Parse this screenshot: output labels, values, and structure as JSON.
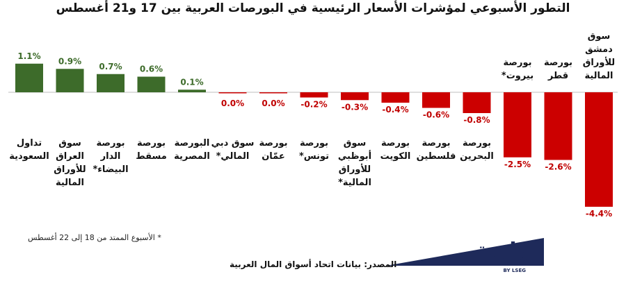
{
  "title": "التطور الأسبوعي لمؤشرات الأسعار الرئيسية في البورصات العربية بين 17 و21 أغسطس",
  "footnote": "* الأسبوع الممتد من 18 إلى 22 أغسطس",
  "source": "المصدر: بيانات اتحاد أسواق المال العربية",
  "logo": {
    "text": "زاوية",
    "sub": "BY LSEG"
  },
  "colors": {
    "positive": "#3d6b2a",
    "negative": "#cc0000",
    "axis": "#bfbfbf"
  },
  "chart_data": {
    "type": "bar",
    "title": "التطور الأسبوعي لمؤشرات الأسعار الرئيسية في البورصات العربية بين 17 و21 أغسطس",
    "categories": [
      "تداول السعودية",
      "سوق العراق للأوراق المالية",
      "بورصة الدار البيضاء*",
      "بورصة مسقط",
      "البورصة المصرية",
      "سوق دبي المالي*",
      "بورصة عمّان",
      "بورصة تونس*",
      "سوق أبوظبي للأوراق المالية*",
      "بورصة الكويت",
      "بورصة فلسطين",
      "بورصة البحرين",
      "بورصة بيروت*",
      "بورصة قطر",
      "سوق دمشق للأوراق المالية"
    ],
    "category_lines": [
      [
        "تداول",
        "السعودية"
      ],
      [
        "سوق",
        "العراق",
        "للأوراق",
        "المالية"
      ],
      [
        "بورصة",
        "الدار",
        "البيضاء*"
      ],
      [
        "بورصة",
        "مسقط"
      ],
      [
        "البورصة",
        "المصرية"
      ],
      [
        "سوق دبي",
        "المالي*"
      ],
      [
        "بورصة",
        "عمّان"
      ],
      [
        "بورصة",
        "تونس*"
      ],
      [
        "سوق",
        "أبوظبي",
        "للأوراق",
        "المالية*"
      ],
      [
        "بورصة",
        "الكويت"
      ],
      [
        "بورصة",
        "فلسطين"
      ],
      [
        "بورصة",
        "البحرين"
      ],
      [
        "بورصة",
        "بيروت*"
      ],
      [
        "بورصة",
        "قطر"
      ],
      [
        "سوق",
        "دمشق",
        "للأوراق",
        "المالية"
      ]
    ],
    "values": [
      1.1,
      0.9,
      0.7,
      0.6,
      0.1,
      0.0,
      0.0,
      -0.2,
      -0.3,
      -0.4,
      -0.6,
      -0.8,
      -2.5,
      -2.6,
      -4.4
    ],
    "value_labels": [
      "1.1%",
      "0.9%",
      "0.7%",
      "0.6%",
      "0.1%",
      "0.0%",
      "0.0%",
      "-0.2%",
      "-0.3%",
      "-0.4%",
      "-0.6%",
      "-0.8%",
      "-2.5%",
      "-2.6%",
      "-4.4%"
    ],
    "ylim": [
      -4.4,
      1.1
    ],
    "grid": false,
    "legend": "none"
  }
}
